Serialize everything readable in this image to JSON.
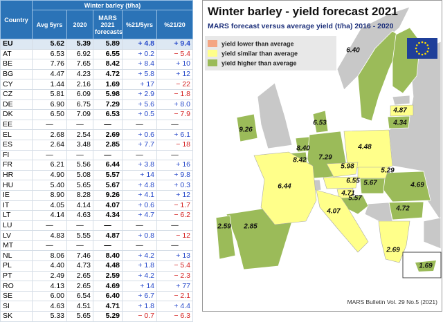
{
  "table": {
    "header": {
      "country": "Country",
      "group": "Winter barley (t/ha)",
      "columns": [
        "Avg 5yrs",
        "2020",
        "MARS 2021 forecasts",
        "%21/5yrs",
        "%21/20"
      ]
    },
    "rows": [
      [
        "EU",
        "5.62",
        "5.39",
        "5.89",
        "+ 4.8",
        "+ 9.4"
      ],
      [
        "AT",
        "6.53",
        "6.92",
        "6.55",
        "+ 0.2",
        "− 5.4"
      ],
      [
        "BE",
        "7.76",
        "7.65",
        "8.42",
        "+ 8.4",
        "+ 10"
      ],
      [
        "BG",
        "4.47",
        "4.23",
        "4.72",
        "+ 5.8",
        "+ 12"
      ],
      [
        "CY",
        "1.44",
        "2.16",
        "1.69",
        "+ 17",
        "− 22"
      ],
      [
        "CZ",
        "5.81",
        "6.09",
        "5.98",
        "+ 2.9",
        "− 1.8"
      ],
      [
        "DE",
        "6.90",
        "6.75",
        "7.29",
        "+ 5.6",
        "+ 8.0"
      ],
      [
        "DK",
        "6.50",
        "7.09",
        "6.53",
        "+ 0.5",
        "− 7.9"
      ],
      [
        "EE",
        "—",
        "—",
        "—",
        "—",
        "—"
      ],
      [
        "EL",
        "2.68",
        "2.54",
        "2.69",
        "+ 0.6",
        "+ 6.1"
      ],
      [
        "ES",
        "2.64",
        "3.48",
        "2.85",
        "+ 7.7",
        "− 18"
      ],
      [
        "FI",
        "—",
        "—",
        "—",
        "—",
        "—"
      ],
      [
        "FR",
        "6.21",
        "5.56",
        "6.44",
        "+ 3.8",
        "+ 16"
      ],
      [
        "HR",
        "4.90",
        "5.08",
        "5.57",
        "+ 14",
        "+ 9.8"
      ],
      [
        "HU",
        "5.40",
        "5.65",
        "5.67",
        "+ 4.8",
        "+ 0.3"
      ],
      [
        "IE",
        "8.90",
        "8.28",
        "9.26",
        "+ 4.1",
        "+ 12"
      ],
      [
        "IT",
        "4.05",
        "4.14",
        "4.07",
        "+ 0.6",
        "− 1.7"
      ],
      [
        "LT",
        "4.14",
        "4.63",
        "4.34",
        "+ 4.7",
        "− 6.2"
      ],
      [
        "LU",
        "—",
        "—",
        "—",
        "—",
        "—"
      ],
      [
        "LV",
        "4.83",
        "5.55",
        "4.87",
        "+ 0.8",
        "− 12"
      ],
      [
        "MT",
        "—",
        "—",
        "—",
        "—",
        "—"
      ],
      [
        "NL",
        "8.06",
        "7.46",
        "8.40",
        "+ 4.2",
        "+ 13"
      ],
      [
        "PL",
        "4.40",
        "4.73",
        "4.48",
        "+ 1.8",
        "− 5.4"
      ],
      [
        "PT",
        "2.49",
        "2.65",
        "2.59",
        "+ 4.2",
        "− 2.3"
      ],
      [
        "RO",
        "4.13",
        "2.65",
        "4.69",
        "+ 14",
        "+ 77"
      ],
      [
        "SE",
        "6.00",
        "6.54",
        "6.40",
        "+ 6.7",
        "− 2.1"
      ],
      [
        "SI",
        "4.63",
        "4.51",
        "4.71",
        "+ 1.8",
        "+ 4.4"
      ],
      [
        "SK",
        "5.33",
        "5.65",
        "5.29",
        "− 0.7",
        "− 6.3"
      ]
    ]
  },
  "map": {
    "title": "Winter barley - yield forecast 2021",
    "subtitle": "MARS forecast versus average yield (t/ha) 2016 - 2020",
    "legend": [
      {
        "label": "yield lower than average",
        "color": "#f4a582"
      },
      {
        "label": "yield similar than average",
        "color": "#ffff8a"
      },
      {
        "label": "yield higher than average",
        "color": "#9bbb59"
      }
    ],
    "labels": [
      "6.40",
      "4.87",
      "4.34",
      "6.53",
      "9.26",
      "8.40",
      "8.42",
      "7.29",
      "4.48",
      "5.98",
      "5.29",
      "6.44",
      "6.55",
      "5.67",
      "4.69",
      "4.71",
      "5.57",
      "4.07",
      "4.72",
      "2.59",
      "2.85",
      "2.69",
      "1.69"
    ],
    "footer": "MARS Bulletin Vol. 29 No.5 (2021)"
  }
}
